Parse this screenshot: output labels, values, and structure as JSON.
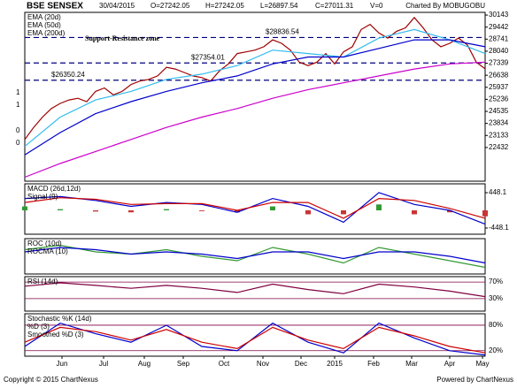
{
  "header": {
    "title": "BSE SENSEX",
    "items": [
      "30/04/2015",
      "O=27242.05",
      "H=27242.05",
      "L=26897.54",
      "C=27011.31",
      "V=0"
    ],
    "credit": "Charted By MOBUGOBU"
  },
  "chart_data": [
    {
      "type": "line",
      "xlim": [
        0,
        52
      ],
      "ylim": [
        20470,
        30300
      ],
      "yticks": [
        30143,
        29442,
        28741,
        28040,
        27339,
        26638,
        25937,
        25236,
        24535,
        23834,
        23133,
        22432
      ],
      "grid": false,
      "left_labels": [
        "1",
        "1",
        "0",
        "0"
      ],
      "annotation": "Support-Resistance zone",
      "levels": [
        {
          "value": 28836.54,
          "label": "$28836.54"
        },
        {
          "value": 27354.01,
          "label": "$27354.01"
        },
        {
          "value": 26350.24,
          "label": "$26350.24"
        }
      ],
      "series": [
        {
          "color": "#a00000",
          "x": [
            0,
            1,
            2,
            3,
            4,
            5,
            6,
            7,
            8,
            9,
            10,
            11,
            12,
            13,
            14,
            15,
            16,
            17,
            18,
            19,
            20,
            21,
            22,
            23,
            24,
            25,
            26,
            27,
            28,
            29,
            30,
            31,
            32,
            33,
            34,
            35,
            36,
            37,
            38,
            39,
            40,
            41,
            42,
            43,
            44,
            45,
            46,
            47,
            48,
            49,
            50,
            51,
            52
          ],
          "values": [
            22900,
            23600,
            24200,
            24700,
            25000,
            25200,
            25300,
            25100,
            25700,
            25900,
            25500,
            25700,
            26100,
            26300,
            26400,
            26600,
            27100,
            27000,
            26800,
            26600,
            26500,
            26300,
            26900,
            27300,
            27900,
            28000,
            28100,
            28300,
            28700,
            28500,
            28100,
            27400,
            27200,
            27400,
            27900,
            27300,
            28000,
            28300,
            29300,
            29600,
            29100,
            28800,
            29200,
            29400,
            30000,
            29400,
            28700,
            28300,
            28500,
            28800,
            28400,
            27400,
            27011
          ]
        },
        {
          "name": "EMA (20d)",
          "color": "#33bbee",
          "x": [
            0,
            4,
            8,
            12,
            16,
            20,
            24,
            28,
            32,
            36,
            40,
            44,
            48,
            52
          ],
          "values": [
            22500,
            24200,
            25200,
            25700,
            26400,
            26700,
            27200,
            28100,
            27900,
            27700,
            28800,
            29300,
            28700,
            27900
          ]
        },
        {
          "name": "EMA (50d)",
          "color": "#0000cc",
          "x": [
            0,
            4,
            8,
            12,
            16,
            20,
            24,
            28,
            32,
            36,
            40,
            44,
            48,
            52
          ],
          "values": [
            22000,
            23300,
            24400,
            25100,
            25700,
            26200,
            26600,
            27300,
            27700,
            27700,
            28200,
            28700,
            28700,
            28300
          ]
        },
        {
          "name": "EMA (200d)",
          "color": "#cc00cc",
          "x": [
            0,
            4,
            8,
            12,
            16,
            20,
            24,
            28,
            32,
            36,
            40,
            44,
            48,
            52
          ],
          "values": [
            20700,
            21500,
            22200,
            22900,
            23600,
            24200,
            24700,
            25300,
            25800,
            26200,
            26600,
            27000,
            27300,
            27400
          ]
        }
      ]
    },
    {
      "type": "line",
      "xlim": [
        0,
        52
      ],
      "ylim": [
        -605,
        672
      ],
      "yticks": [
        448.1,
        -448.1
      ],
      "grid": false,
      "positive_color": "#339933",
      "negative_color": "#cc3333",
      "series": [
        {
          "type": "bar",
          "x": [
            0,
            4,
            8,
            12,
            16,
            20,
            24,
            28,
            32,
            36,
            40,
            44,
            48,
            52
          ],
          "values": [
            100,
            30,
            -30,
            -50,
            30,
            -20,
            -50,
            100,
            -100,
            -100,
            150,
            -100,
            -50,
            -150
          ]
        },
        {
          "name": "MACD (26d,12d)",
          "color": "#0000cc",
          "x": [
            0,
            4,
            8,
            12,
            16,
            20,
            24,
            28,
            32,
            36,
            40,
            44,
            48,
            52
          ],
          "values": [
            300,
            350,
            250,
            100,
            200,
            150,
            -50,
            300,
            100,
            -300,
            450,
            150,
            0,
            -350
          ]
        },
        {
          "name": "Signal (9)",
          "color": "#cc0000",
          "x": [
            0,
            4,
            8,
            12,
            16,
            20,
            24,
            28,
            32,
            36,
            40,
            44,
            48,
            52
          ],
          "values": [
            200,
            320,
            280,
            150,
            170,
            170,
            0,
            200,
            200,
            -200,
            300,
            250,
            50,
            -200
          ]
        }
      ]
    },
    {
      "type": "line",
      "xlim": [
        0,
        52
      ],
      "ylim": [
        -8,
        8
      ],
      "yticks": [],
      "grid": false,
      "series": [
        {
          "name": "ROC (10d)",
          "color": "#339933",
          "x": [
            0,
            4,
            8,
            12,
            16,
            20,
            24,
            28,
            32,
            36,
            40,
            44,
            48,
            52
          ],
          "values": [
            3,
            5,
            2,
            1,
            3,
            0,
            -2,
            4,
            1,
            -3,
            4,
            1,
            -2,
            -5
          ]
        },
        {
          "name": "ROCMA (10)",
          "color": "#0000cc",
          "x": [
            0,
            4,
            8,
            12,
            16,
            20,
            24,
            28,
            32,
            36,
            40,
            44,
            48,
            52
          ],
          "values": [
            2,
            4,
            3,
            1,
            2,
            1,
            -1,
            2,
            2,
            -1,
            2,
            2,
            0,
            -3
          ]
        }
      ]
    },
    {
      "type": "line",
      "xlim": [
        0,
        52
      ],
      "ylim": [
        0,
        83
      ],
      "yticks": [
        {
          "value": 70,
          "label": "70%"
        },
        {
          "value": 30,
          "label": "30%"
        }
      ],
      "grid": true,
      "series": [
        {
          "name": "RSI (14d)",
          "color": "#800040",
          "x": [
            0,
            4,
            8,
            12,
            16,
            20,
            24,
            28,
            32,
            36,
            40,
            44,
            48,
            52
          ],
          "values": [
            60,
            68,
            62,
            55,
            62,
            55,
            45,
            65,
            52,
            42,
            65,
            58,
            48,
            35
          ]
        }
      ]
    },
    {
      "type": "line",
      "xlim": [
        0,
        52
      ],
      "ylim": [
        7,
        107
      ],
      "yticks": [
        {
          "value": 80,
          "label": "80%"
        },
        {
          "value": 20,
          "label": "20%"
        }
      ],
      "grid": true,
      "legend_title": "Stochastic %K (14d)",
      "xticks": [
        {
          "value": 4.2,
          "label": "Jun"
        },
        {
          "value": 8.9,
          "label": "Jul"
        },
        {
          "value": 13.5,
          "label": "Aug"
        },
        {
          "value": 17.9,
          "label": "Sep"
        },
        {
          "value": 22.5,
          "label": "Oct"
        },
        {
          "value": 26.9,
          "label": "Nov"
        },
        {
          "value": 31.2,
          "label": "Dec"
        },
        {
          "value": 35,
          "label": "2015"
        },
        {
          "value": 39.4,
          "label": "Feb"
        },
        {
          "value": 43.7,
          "label": "Mar"
        },
        {
          "value": 48,
          "label": "Apr"
        },
        {
          "value": 51.7,
          "label": "May"
        }
      ],
      "series": [
        {
          "name": "%D (3)",
          "color": "#0000cc",
          "x": [
            0,
            4,
            8,
            12,
            16,
            20,
            24,
            28,
            32,
            36,
            40,
            44,
            48,
            52
          ],
          "values": [
            30,
            85,
            60,
            40,
            80,
            30,
            20,
            85,
            40,
            15,
            85,
            50,
            20,
            10
          ]
        },
        {
          "name": "Smoothed %D (3)",
          "color": "#cc0000",
          "x": [
            0,
            4,
            8,
            12,
            16,
            20,
            24,
            28,
            32,
            36,
            40,
            44,
            48,
            52
          ],
          "values": [
            40,
            75,
            65,
            45,
            70,
            40,
            25,
            75,
            45,
            25,
            75,
            55,
            30,
            15
          ]
        }
      ]
    }
  ],
  "footer": {
    "copyright": "Copyright © 2015 ChartNexus",
    "powered_by": "Powered by ChartNexus"
  }
}
